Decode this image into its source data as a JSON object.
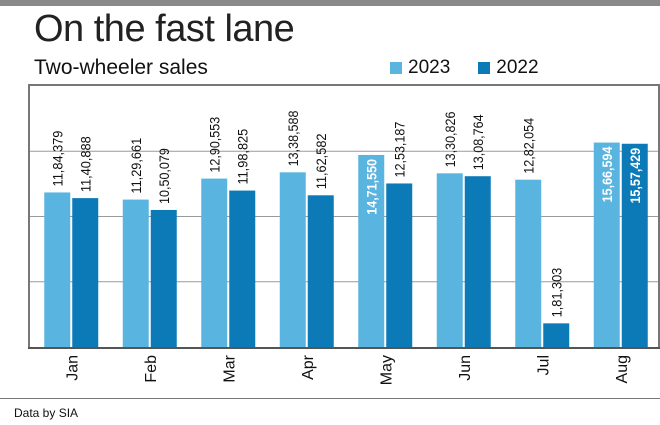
{
  "title": "On the fast lane",
  "subtitle": "Two-wheeler sales",
  "source": "Data by SIA",
  "legend": [
    {
      "label": "2023",
      "color": "#5ab4e0"
    },
    {
      "label": "2022",
      "color": "#0d7ab8"
    }
  ],
  "chart_data": {
    "type": "bar",
    "categories": [
      "Jan",
      "Feb",
      "Mar",
      "Apr",
      "May",
      "Jun",
      "Jul",
      "Aug"
    ],
    "series": [
      {
        "name": "2023",
        "color": "#5ab4e0",
        "values": [
          1184379,
          1129661,
          1290553,
          1338588,
          1471550,
          1330826,
          1282054,
          1566594
        ],
        "labels": [
          "11,84,379",
          "11,29,661",
          "12,90,553",
          "13,38,588",
          "14,71,550",
          "13,30,826",
          "12,82,054",
          "15,66,594"
        ]
      },
      {
        "name": "2022",
        "color": "#0d7ab8",
        "values": [
          1140888,
          1050079,
          1198825,
          1162582,
          1253187,
          1308764,
          181303,
          1557429
        ],
        "labels": [
          "11,40,888",
          "10,50,079",
          "11,98,825",
          "11,62,582",
          "12,53,187",
          "13,08,764",
          "1,81,303",
          "15,57,429"
        ]
      }
    ],
    "inside_labels": [
      "May-2023",
      "Aug-2023",
      "Aug-2022"
    ],
    "grid": true,
    "ylim": [
      0,
      2000000
    ],
    "xlabel": "",
    "ylabel": ""
  }
}
